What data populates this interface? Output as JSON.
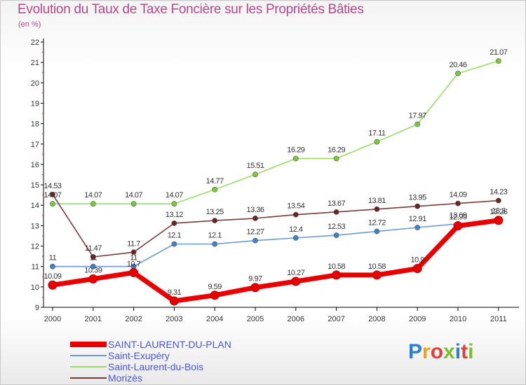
{
  "title": "Evolution du Taux de Taxe Foncière sur les Propriétés Bâties",
  "unit_label": "(en %)",
  "logo": {
    "text": "Proxiti",
    "colors": [
      "#2a7fd4",
      "#f0a020",
      "#e0403a",
      "#7bbf2c",
      "#2a7fd4",
      "#e0403a",
      "#7bbf2c"
    ]
  },
  "chart_data": {
    "type": "line",
    "x": [
      "2000",
      "2001",
      "2002",
      "2003",
      "2004",
      "2005",
      "2006",
      "2007",
      "2008",
      "2009",
      "2010",
      "2011"
    ],
    "ylim": [
      9,
      22
    ],
    "yticks": [
      "9",
      "10",
      "11",
      "12",
      "13",
      "14",
      "15",
      "16",
      "17",
      "18",
      "19",
      "20",
      "21",
      "22"
    ],
    "grid": false,
    "legend_position": "bottom-left",
    "series": [
      {
        "name": "SAINT-LAURENT-DU-PLAN",
        "color": "#e80000",
        "marker": "#e80000",
        "values": [
          10.09,
          10.39,
          10.7,
          9.31,
          9.59,
          9.97,
          10.27,
          10.58,
          10.58,
          10.9,
          12.99,
          13.26
        ],
        "labels": [
          "10.09",
          "10.39",
          "10.7",
          "9.31",
          "9.59",
          "9.97",
          "10.27",
          "10.58",
          "10.58",
          "10.9",
          "12.99",
          "13.26"
        ],
        "thick": true
      },
      {
        "name": "Saint-Exupéry",
        "color": "#6a9ad0",
        "marker": "#3e82cc",
        "values": [
          11,
          11,
          11,
          12.1,
          12.1,
          12.27,
          12.4,
          12.53,
          12.72,
          12.91,
          13.09,
          13.3
        ],
        "labels": [
          "11",
          "11",
          "11",
          "12.1",
          "12.1",
          "12.27",
          "12.4",
          "12.53",
          "12.72",
          "12.91",
          "13.09",
          "13.3"
        ],
        "thick": false
      },
      {
        "name": "Saint-Laurent-du-Bois",
        "color": "#99dd66",
        "marker": "#7cc83c",
        "values": [
          14.07,
          14.07,
          14.07,
          14.07,
          14.77,
          15.51,
          16.29,
          16.29,
          17.11,
          17.97,
          20.46,
          21.07
        ],
        "labels": [
          "14.07",
          "14.07",
          "14.07",
          "14.07",
          "14.77",
          "15.51",
          "16.29",
          "16.29",
          "17.11",
          "17.97",
          "20.46",
          "21.07"
        ],
        "thick": false
      },
      {
        "name": "Morizès",
        "color": "#7a3a3a",
        "marker": "#6a2424",
        "values": [
          14.53,
          11.47,
          11.7,
          13.12,
          13.25,
          13.36,
          13.54,
          13.67,
          13.81,
          13.95,
          14.09,
          14.23
        ],
        "labels": [
          "14.53",
          "11.47",
          "11.7",
          "13.12",
          "13.25",
          "13.36",
          "13.54",
          "13.67",
          "13.81",
          "13.95",
          "14.09",
          "14.23"
        ],
        "thick": false
      }
    ]
  }
}
